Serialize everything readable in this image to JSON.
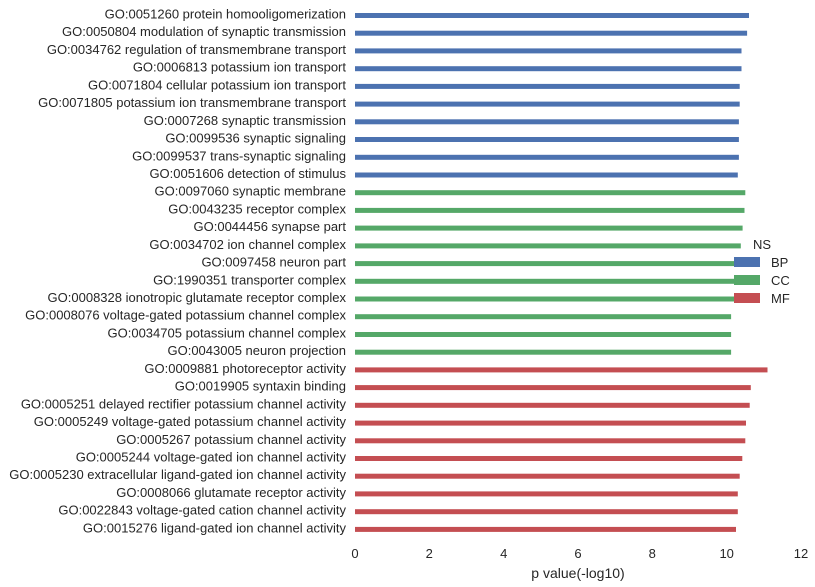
{
  "chart_data": {
    "type": "bar",
    "orientation": "horizontal",
    "xlabel": "p value(-log10)",
    "xlim": [
      0,
      12
    ],
    "xticks": [
      0,
      2,
      4,
      6,
      8,
      10,
      12
    ],
    "legend": {
      "title": "NS",
      "placement": "right",
      "entries": [
        {
          "name": "BP",
          "color": "#4c72b0"
        },
        {
          "name": "CC",
          "color": "#55a868"
        },
        {
          "name": "MF",
          "color": "#c44e52"
        }
      ]
    },
    "grid": false,
    "categories": [
      {
        "label": "GO:0051260 protein homooligomerization",
        "group": "BP",
        "value": 10.6
      },
      {
        "label": "GO:0050804 modulation of synaptic transmission",
        "group": "BP",
        "value": 10.55
      },
      {
        "label": "GO:0034762 regulation of transmembrane transport",
        "group": "BP",
        "value": 10.4
      },
      {
        "label": "GO:0006813 potassium ion transport",
        "group": "BP",
        "value": 10.4
      },
      {
        "label": "GO:0071804 cellular potassium ion transport",
        "group": "BP",
        "value": 10.35
      },
      {
        "label": "GO:0071805 potassium ion transmembrane transport",
        "group": "BP",
        "value": 10.35
      },
      {
        "label": "GO:0007268 synaptic transmission",
        "group": "BP",
        "value": 10.33
      },
      {
        "label": "GO:0099536 synaptic signaling",
        "group": "BP",
        "value": 10.33
      },
      {
        "label": "GO:0099537 trans-synaptic signaling",
        "group": "BP",
        "value": 10.33
      },
      {
        "label": "GO:0051606 detection of stimulus",
        "group": "BP",
        "value": 10.3
      },
      {
        "label": "GO:0097060 synaptic membrane",
        "group": "CC",
        "value": 10.5
      },
      {
        "label": "GO:0043235 receptor complex",
        "group": "CC",
        "value": 10.48
      },
      {
        "label": "GO:0044456 synapse part",
        "group": "CC",
        "value": 10.43
      },
      {
        "label": "GO:0034702 ion channel complex",
        "group": "CC",
        "value": 10.38
      },
      {
        "label": "GO:0097458 neuron part",
        "group": "CC",
        "value": 10.3
      },
      {
        "label": "GO:1990351 transporter complex",
        "group": "CC",
        "value": 10.3
      },
      {
        "label": "GO:0008328 ionotropic glutamate receptor complex",
        "group": "CC",
        "value": 10.3
      },
      {
        "label": "GO:0008076 voltage-gated potassium channel complex",
        "group": "CC",
        "value": 10.12
      },
      {
        "label": "GO:0034705 potassium channel complex",
        "group": "CC",
        "value": 10.12
      },
      {
        "label": "GO:0043005 neuron projection",
        "group": "CC",
        "value": 10.12
      },
      {
        "label": "GO:0009881 photoreceptor activity",
        "group": "MF",
        "value": 11.1
      },
      {
        "label": "GO:0019905 syntaxin binding",
        "group": "MF",
        "value": 10.65
      },
      {
        "label": "GO:0005251 delayed rectifier potassium channel activity",
        "group": "MF",
        "value": 10.62
      },
      {
        "label": "GO:0005249 voltage-gated potassium channel activity",
        "group": "MF",
        "value": 10.52
      },
      {
        "label": "GO:0005267 potassium channel activity",
        "group": "MF",
        "value": 10.5
      },
      {
        "label": "GO:0005244 voltage-gated ion channel activity",
        "group": "MF",
        "value": 10.42
      },
      {
        "label": "GO:0005230 extracellular ligand-gated ion channel activity",
        "group": "MF",
        "value": 10.35
      },
      {
        "label": "GO:0008066 glutamate receptor activity",
        "group": "MF",
        "value": 10.3
      },
      {
        "label": "GO:0022843 voltage-gated cation channel activity",
        "group": "MF",
        "value": 10.3
      },
      {
        "label": "GO:0015276 ligand-gated ion channel activity",
        "group": "MF",
        "value": 10.25
      }
    ]
  }
}
